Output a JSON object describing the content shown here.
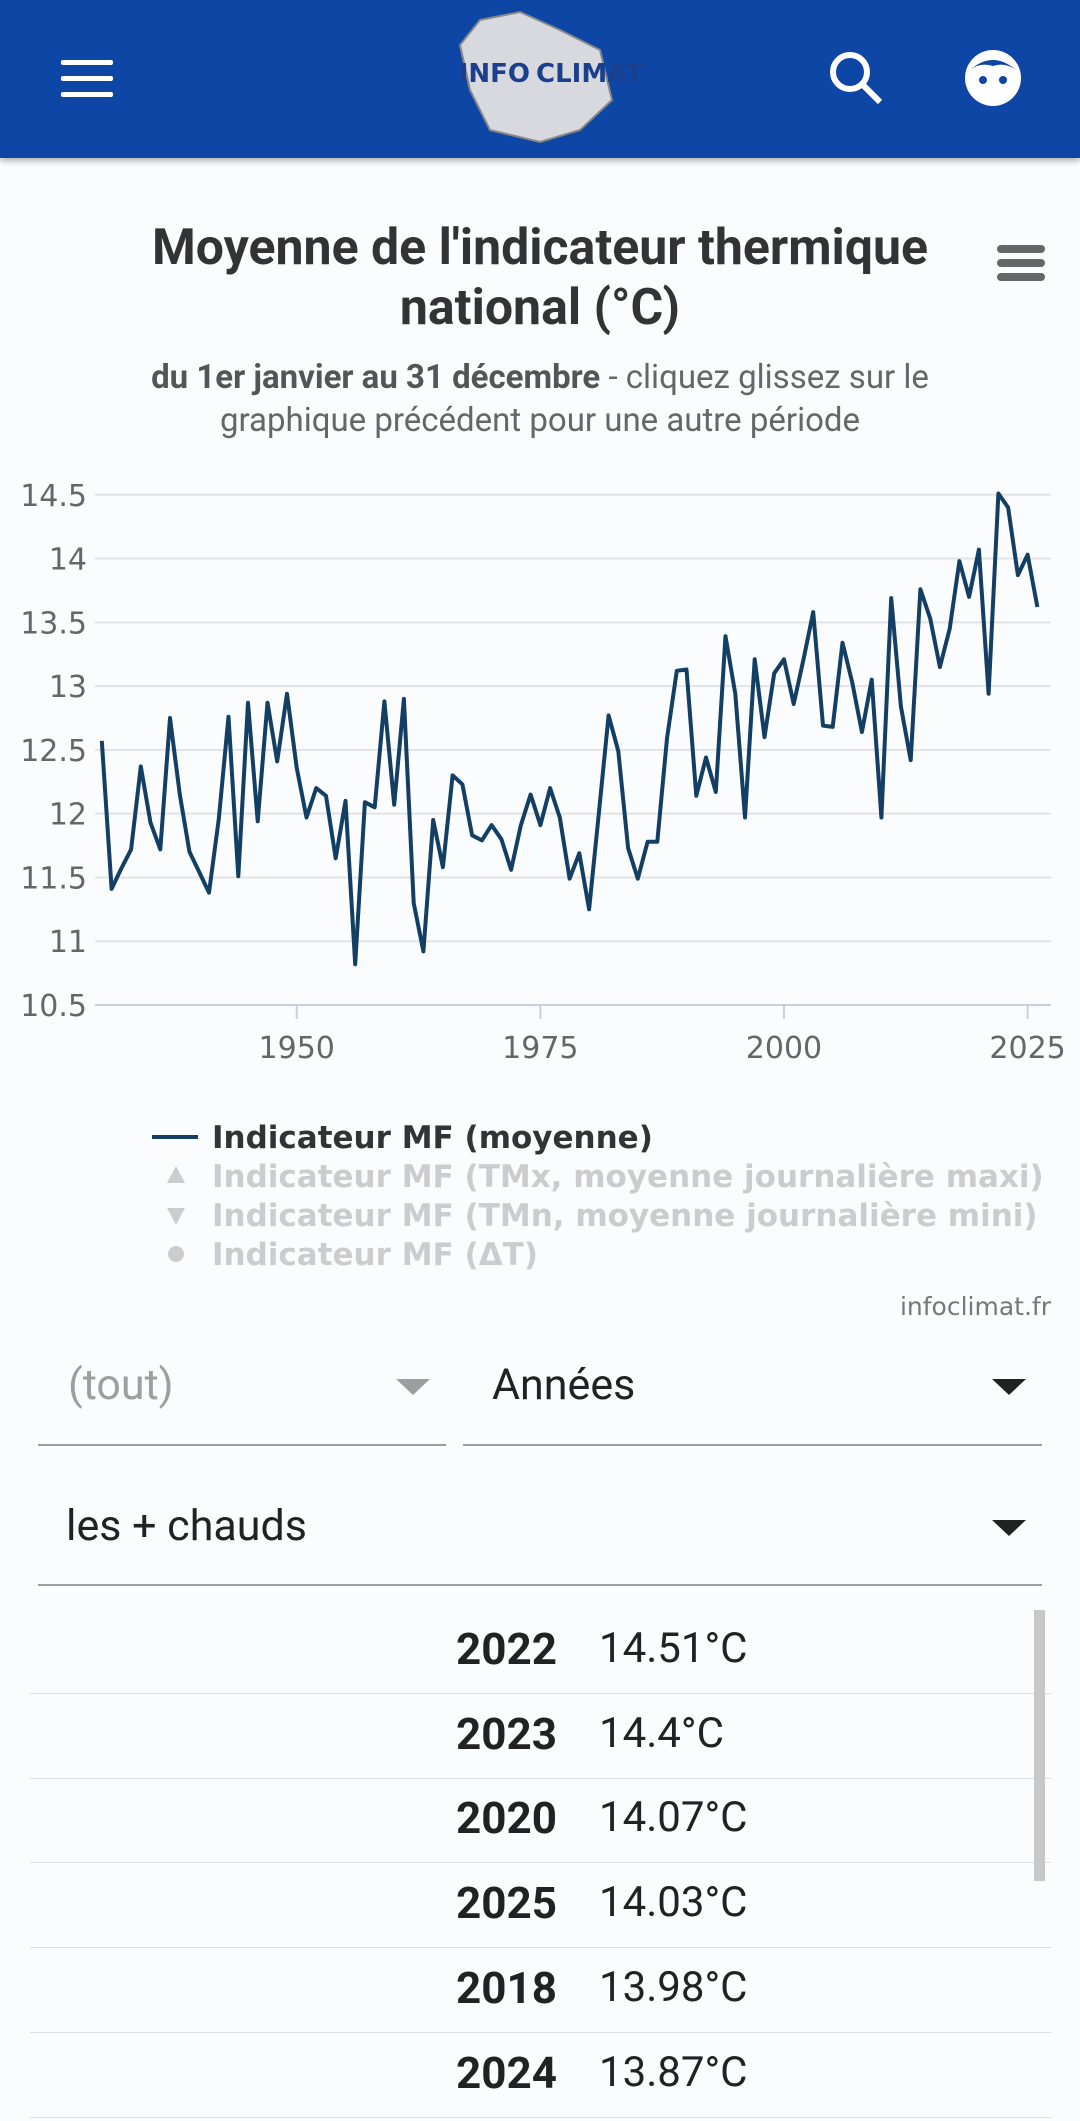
{
  "header": {
    "logo_text": [
      "INFO",
      "CLIMAT"
    ]
  },
  "chart_data": {
    "type": "line",
    "title": "Moyenne de l'indicateur thermique national (°C)",
    "subtitle_bold": "du 1er janvier au 31 décembre",
    "subtitle": " - cliquez glissez sur le graphique précédent pour une autre période",
    "x": [
      1930,
      1931,
      1932,
      1933,
      1934,
      1935,
      1936,
      1937,
      1938,
      1939,
      1940,
      1941,
      1942,
      1943,
      1944,
      1945,
      1946,
      1947,
      1948,
      1949,
      1950,
      1951,
      1952,
      1953,
      1954,
      1955,
      1956,
      1957,
      1958,
      1959,
      1960,
      1961,
      1962,
      1963,
      1964,
      1965,
      1966,
      1967,
      1968,
      1969,
      1970,
      1971,
      1972,
      1973,
      1974,
      1975,
      1976,
      1977,
      1978,
      1979,
      1980,
      1981,
      1982,
      1983,
      1984,
      1985,
      1986,
      1987,
      1988,
      1989,
      1990,
      1991,
      1992,
      1993,
      1994,
      1995,
      1996,
      1997,
      1998,
      1999,
      2000,
      2001,
      2002,
      2003,
      2004,
      2005,
      2006,
      2007,
      2008,
      2009,
      2010,
      2011,
      2012,
      2013,
      2014,
      2015,
      2016,
      2017,
      2018,
      2019,
      2020,
      2021,
      2022,
      2023,
      2024,
      2025,
      2026
    ],
    "series": [
      {
        "name": "Indicateur MF (moyenne)",
        "color": "#123f63",
        "values": [
          12.57,
          11.41,
          11.57,
          11.72,
          12.37,
          11.93,
          11.72,
          12.75,
          12.15,
          11.7,
          11.54,
          11.38,
          11.96,
          12.76,
          11.51,
          12.87,
          11.94,
          12.87,
          12.41,
          12.94,
          12.36,
          11.97,
          12.2,
          12.14,
          11.65,
          12.1,
          10.82,
          12.09,
          12.05,
          12.88,
          12.07,
          12.9,
          11.3,
          10.92,
          11.95,
          11.58,
          12.3,
          12.23,
          11.83,
          11.79,
          11.91,
          11.8,
          11.56,
          11.91,
          12.15,
          11.91,
          12.2,
          11.97,
          11.49,
          11.69,
          11.25,
          12.0,
          12.77,
          12.49,
          11.73,
          11.49,
          11.78,
          11.78,
          12.59,
          13.12,
          13.13,
          12.14,
          12.44,
          12.17,
          13.39,
          12.94,
          11.97,
          13.21,
          12.6,
          13.1,
          13.21,
          12.86,
          13.21,
          13.58,
          12.69,
          12.68,
          13.34,
          13.03,
          12.64,
          13.05,
          11.97,
          13.69,
          12.84,
          12.42,
          13.76,
          13.53,
          13.15,
          13.45,
          13.98,
          13.7,
          14.07,
          12.94,
          14.51,
          14.4,
          13.87,
          14.03,
          13.62
        ]
      }
    ],
    "legend_inactive": [
      "Indicateur MF (TMx, moyenne journalière maxi)",
      "Indicateur MF (TMn, moyenne journalière mini)",
      "Indicateur MF (ΔT)"
    ],
    "xlim": [
      1929.3,
      2027.4
    ],
    "xticks": [
      1950,
      1975,
      2000,
      2025
    ],
    "ylim": [
      10.5,
      14.6
    ],
    "yticks": [
      10.5,
      11,
      11.5,
      12,
      12.5,
      13,
      13.5,
      14,
      14.5
    ],
    "grid": true,
    "credit": "infoclimat.fr"
  },
  "filters": {
    "period": "(tout)",
    "unit": "Années",
    "order": "les + chauds"
  },
  "table": {
    "rows": [
      [
        "2022",
        "14.51°C"
      ],
      [
        "2023",
        "14.4°C"
      ],
      [
        "2020",
        "14.07°C"
      ],
      [
        "2025",
        "14.03°C"
      ],
      [
        "2018",
        "13.98°C"
      ],
      [
        "2024",
        "13.87°C"
      ]
    ]
  }
}
